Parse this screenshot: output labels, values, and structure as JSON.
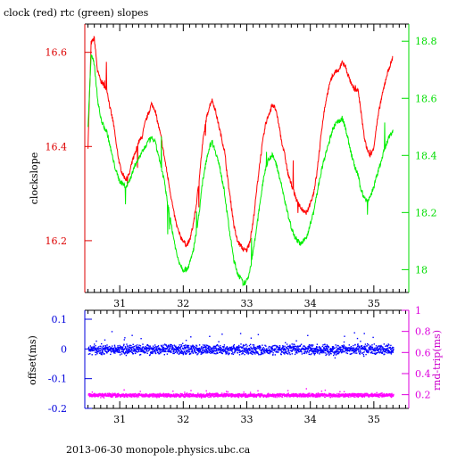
{
  "chart_data": [
    {
      "type": "line",
      "title": "clock (red) rtc (green) slopes",
      "xlabel": "",
      "ylabel": "clockslope",
      "xlim": [
        30.45,
        35.55
      ],
      "x_ticks": [
        31,
        32,
        33,
        34,
        35
      ],
      "ylim": [
        16.09,
        16.66
      ],
      "y_ticks": [
        16.2,
        16.4,
        16.6
      ],
      "y_tick_labels": [
        "16.2",
        "16.4",
        "16.6"
      ],
      "y2lim": [
        17.92,
        18.86
      ],
      "y2_ticks": [
        18.0,
        18.2,
        18.4,
        18.6,
        18.8
      ],
      "y2_tick_labels": [
        "18",
        "18.2",
        "18.4",
        "18.6",
        "18.8"
      ],
      "grid": false,
      "legend": "none",
      "colors": {
        "left_axis": "#dd0000",
        "right_axis": "#00dd00",
        "frame": "#000000"
      },
      "series": [
        {
          "color": "#ff0000",
          "axis": "left",
          "x": [
            30.5,
            30.55,
            30.6,
            30.65,
            30.7,
            30.75,
            30.8,
            30.85,
            30.9,
            30.95,
            31.0,
            31.05,
            31.1,
            31.15,
            31.2,
            31.25,
            31.3,
            31.35,
            31.4,
            31.45,
            31.5,
            31.55,
            31.6,
            31.65,
            31.7,
            31.75,
            31.8,
            31.85,
            31.9,
            31.95,
            32.0,
            32.05,
            32.1,
            32.15,
            32.2,
            32.25,
            32.3,
            32.35,
            32.4,
            32.45,
            32.5,
            32.55,
            32.6,
            32.65,
            32.7,
            32.75,
            32.8,
            32.85,
            32.9,
            32.95,
            33.0,
            33.05,
            33.1,
            33.15,
            33.2,
            33.25,
            33.3,
            33.35,
            33.4,
            33.45,
            33.5,
            33.55,
            33.6,
            33.65,
            33.7,
            33.75,
            33.8,
            33.85,
            33.9,
            33.95,
            34.0,
            34.05,
            34.1,
            34.15,
            34.2,
            34.25,
            34.3,
            34.35,
            34.4,
            34.45,
            34.5,
            34.55,
            34.6,
            34.65,
            34.7,
            34.75,
            34.8,
            34.85,
            34.9,
            34.95,
            35.0,
            35.05,
            35.1,
            35.15,
            35.2,
            35.25,
            35.3
          ],
          "y": [
            16.4,
            16.62,
            16.63,
            16.56,
            16.54,
            16.53,
            16.52,
            16.48,
            16.45,
            16.4,
            16.36,
            16.34,
            16.33,
            16.34,
            16.37,
            16.39,
            16.41,
            16.42,
            16.45,
            16.47,
            16.49,
            16.48,
            16.45,
            16.42,
            16.38,
            16.34,
            16.3,
            16.26,
            16.23,
            16.21,
            16.2,
            16.19,
            16.2,
            16.23,
            16.27,
            16.33,
            16.4,
            16.45,
            16.48,
            16.5,
            16.48,
            16.45,
            16.42,
            16.39,
            16.33,
            16.28,
            16.23,
            16.2,
            16.19,
            16.18,
            16.18,
            16.2,
            16.24,
            16.3,
            16.36,
            16.41,
            16.45,
            16.47,
            16.49,
            16.48,
            16.45,
            16.41,
            16.38,
            16.34,
            16.32,
            16.3,
            16.28,
            16.27,
            16.26,
            16.26,
            16.28,
            16.3,
            16.34,
            16.4,
            16.46,
            16.5,
            16.53,
            16.55,
            16.56,
            16.56,
            16.58,
            16.57,
            16.55,
            16.53,
            16.52,
            16.52,
            16.47,
            16.42,
            16.39,
            16.38,
            16.4,
            16.45,
            16.49,
            16.52,
            16.55,
            16.57,
            16.59
          ]
        },
        {
          "color": "#00ee00",
          "axis": "right",
          "x": [
            30.5,
            30.55,
            30.6,
            30.65,
            30.7,
            30.75,
            30.8,
            30.85,
            30.9,
            30.95,
            31.0,
            31.05,
            31.1,
            31.15,
            31.2,
            31.25,
            31.3,
            31.35,
            31.4,
            31.45,
            31.5,
            31.55,
            31.6,
            31.65,
            31.7,
            31.75,
            31.8,
            31.85,
            31.9,
            31.95,
            32.0,
            32.05,
            32.1,
            32.15,
            32.2,
            32.25,
            32.3,
            32.35,
            32.4,
            32.45,
            32.5,
            32.55,
            32.6,
            32.65,
            32.7,
            32.75,
            32.8,
            32.85,
            32.9,
            32.95,
            33.0,
            33.05,
            33.1,
            33.15,
            33.2,
            33.25,
            33.3,
            33.35,
            33.4,
            33.45,
            33.5,
            33.55,
            33.6,
            33.65,
            33.7,
            33.75,
            33.8,
            33.85,
            33.9,
            33.95,
            34.0,
            34.05,
            34.1,
            34.15,
            34.2,
            34.25,
            34.3,
            34.35,
            34.4,
            34.45,
            34.5,
            34.55,
            34.6,
            34.65,
            34.7,
            34.75,
            34.8,
            34.85,
            34.9,
            34.95,
            35.0,
            35.05,
            35.1,
            35.15,
            35.2,
            35.25,
            35.3
          ],
          "y": [
            18.5,
            18.75,
            18.72,
            18.6,
            18.53,
            18.5,
            18.48,
            18.43,
            18.38,
            18.34,
            18.31,
            18.3,
            18.29,
            18.31,
            18.34,
            18.37,
            18.39,
            18.41,
            18.43,
            18.45,
            18.46,
            18.45,
            18.41,
            18.36,
            18.31,
            18.24,
            18.17,
            18.11,
            18.05,
            18.02,
            18.0,
            18.0,
            18.02,
            18.06,
            18.12,
            18.2,
            18.3,
            18.37,
            18.42,
            18.45,
            18.42,
            18.38,
            18.33,
            18.27,
            18.18,
            18.1,
            18.03,
            17.99,
            17.97,
            17.95,
            17.96,
            18.0,
            18.06,
            18.14,
            18.22,
            18.3,
            18.36,
            18.39,
            18.4,
            18.38,
            18.34,
            18.29,
            18.24,
            18.19,
            18.15,
            18.12,
            18.1,
            18.09,
            18.1,
            18.12,
            18.16,
            18.2,
            18.26,
            18.32,
            18.37,
            18.41,
            18.45,
            18.49,
            18.51,
            18.52,
            18.53,
            18.5,
            18.45,
            18.4,
            18.36,
            18.33,
            18.28,
            18.25,
            18.24,
            18.26,
            18.29,
            18.33,
            18.37,
            18.41,
            18.44,
            18.47,
            18.49
          ]
        }
      ]
    },
    {
      "type": "scatter",
      "title": "",
      "xlabel": "",
      "ylabel": "offset(ms)",
      "y2label": "rnd-trip(ms)",
      "xlim": [
        30.45,
        35.55
      ],
      "x_ticks": [
        31,
        32,
        33,
        34,
        35
      ],
      "ylim": [
        -0.2,
        0.13
      ],
      "y_ticks": [
        -0.2,
        -0.1,
        0,
        0.1
      ],
      "y_tick_labels": [
        "-0.2",
        "-0.1",
        "0",
        "0.1"
      ],
      "y2lim": [
        0.07,
        1.0
      ],
      "y2_ticks": [
        0.2,
        0.4,
        0.6,
        0.8,
        1.0
      ],
      "y2_tick_labels": [
        "0.2",
        "0.4",
        "0.6",
        "0.8",
        "1"
      ],
      "grid": false,
      "legend": "none",
      "colors": {
        "left_axis": "#0000dd",
        "right_axis": "#dd00dd",
        "frame": "#000000"
      },
      "series": [
        {
          "color": "#0000ff",
          "axis": "left",
          "x_range": [
            30.5,
            35.3
          ],
          "center": 0.0,
          "band": 0.02
        },
        {
          "color": "#ff00ff",
          "axis": "right",
          "x_range": [
            30.5,
            35.3
          ],
          "center": 0.2,
          "band": 0.02
        }
      ]
    }
  ],
  "footer": "2013-06-30 monopole.physics.ubc.ca"
}
